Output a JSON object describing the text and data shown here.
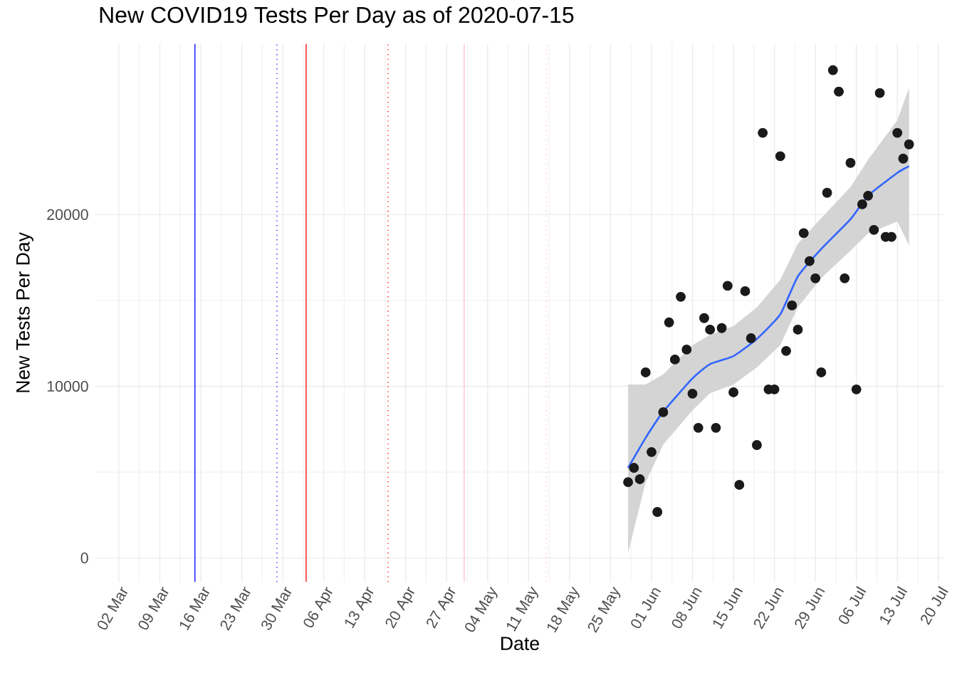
{
  "chart_data": {
    "type": "scatter",
    "title": "New COVID19 Tests Per Day as of 2020-07-15",
    "xlabel": "Date",
    "ylabel": "New Tests Per Day",
    "xlim": [
      "2020-02-27",
      "2020-07-21"
    ],
    "ylim": [
      -1400,
      29950
    ],
    "xticks": [
      {
        "value": "2020-03-02",
        "label": "02 Mar"
      },
      {
        "value": "2020-03-09",
        "label": "09 Mar"
      },
      {
        "value": "2020-03-16",
        "label": "16 Mar"
      },
      {
        "value": "2020-03-23",
        "label": "23 Mar"
      },
      {
        "value": "2020-03-30",
        "label": "30 Mar"
      },
      {
        "value": "2020-04-06",
        "label": "06 Apr"
      },
      {
        "value": "2020-04-13",
        "label": "13 Apr"
      },
      {
        "value": "2020-04-20",
        "label": "20 Apr"
      },
      {
        "value": "2020-04-27",
        "label": "27 Apr"
      },
      {
        "value": "2020-05-04",
        "label": "04 May"
      },
      {
        "value": "2020-05-11",
        "label": "11 May"
      },
      {
        "value": "2020-05-18",
        "label": "18 May"
      },
      {
        "value": "2020-05-25",
        "label": "25 May"
      },
      {
        "value": "2020-06-01",
        "label": "01 Jun"
      },
      {
        "value": "2020-06-08",
        "label": "08 Jun"
      },
      {
        "value": "2020-06-15",
        "label": "15 Jun"
      },
      {
        "value": "2020-06-22",
        "label": "22 Jun"
      },
      {
        "value": "2020-06-29",
        "label": "29 Jun"
      },
      {
        "value": "2020-07-06",
        "label": "06 Jul"
      },
      {
        "value": "2020-07-13",
        "label": "13 Jul"
      },
      {
        "value": "2020-07-20",
        "label": "20 Jul"
      }
    ],
    "yticks": [
      0,
      10000,
      20000
    ],
    "grid": true,
    "ref_lines": [
      {
        "axis": "x",
        "value": "2020-03-15",
        "color": "#0000ff",
        "line_style": "solid"
      },
      {
        "axis": "x",
        "value": "2020-03-29",
        "color": "#0000ff",
        "line_style": "dotted"
      },
      {
        "axis": "x",
        "value": "2020-04-03",
        "color": "#ff0000",
        "line_style": "solid"
      },
      {
        "axis": "x",
        "value": "2020-04-17",
        "color": "#ff0000",
        "line_style": "dotted"
      },
      {
        "axis": "x",
        "value": "2020-04-30",
        "color": "#ffc0cb",
        "line_style": "solid"
      },
      {
        "axis": "x",
        "value": "2020-05-14",
        "color": "#ffc0cb",
        "line_style": "dotted"
      }
    ],
    "series": [
      {
        "color": "#1a1a1a",
        "marker": "circle",
        "x": [
          "2020-05-28",
          "2020-05-29",
          "2020-05-30",
          "2020-05-31",
          "2020-06-01",
          "2020-06-02",
          "2020-06-03",
          "2020-06-04",
          "2020-06-05",
          "2020-06-06",
          "2020-06-07",
          "2020-06-08",
          "2020-06-09",
          "2020-06-10",
          "2020-06-11",
          "2020-06-12",
          "2020-06-13",
          "2020-06-14",
          "2020-06-15",
          "2020-06-16",
          "2020-06-17",
          "2020-06-18",
          "2020-06-19",
          "2020-06-20",
          "2020-06-21",
          "2020-06-22",
          "2020-06-23",
          "2020-06-24",
          "2020-06-25",
          "2020-06-26",
          "2020-06-27",
          "2020-06-28",
          "2020-06-29",
          "2020-06-30",
          "2020-07-01",
          "2020-07-02",
          "2020-07-03",
          "2020-07-04",
          "2020-07-05",
          "2020-07-06",
          "2020-07-07",
          "2020-07-08",
          "2020-07-09",
          "2020-07-10",
          "2020-07-11",
          "2020-07-12",
          "2020-07-13",
          "2020-07-14",
          "2020-07-15"
        ],
        "values": [
          4420,
          5250,
          4590,
          10810,
          6170,
          2680,
          8490,
          13720,
          11560,
          15210,
          12140,
          9570,
          7580,
          13970,
          13300,
          7580,
          13390,
          15850,
          9650,
          4260,
          15540,
          12800,
          6580,
          24760,
          9820,
          9820,
          23400,
          12060,
          14710,
          13300,
          18920,
          17290,
          16290,
          10810,
          21270,
          28410,
          27160,
          16290,
          23010,
          9820,
          20600,
          21100,
          19110,
          27080,
          18700,
          18700,
          24760,
          23260,
          24090
        ]
      },
      {
        "type": "line",
        "color": "#3366ff",
        "marker": "none",
        "x": [
          "2020-05-28",
          "2020-05-31",
          "2020-06-03",
          "2020-06-08",
          "2020-06-11",
          "2020-06-15",
          "2020-06-19",
          "2020-06-23",
          "2020-06-26",
          "2020-06-30",
          "2020-07-05",
          "2020-07-08",
          "2020-07-13",
          "2020-07-15"
        ],
        "values": [
          5250,
          7000,
          8520,
          10460,
          11290,
          11760,
          12760,
          14190,
          16400,
          18000,
          19730,
          21100,
          22430,
          22820
        ],
        "lower": [
          300,
          4400,
          6600,
          8600,
          9600,
          10100,
          11100,
          12400,
          14600,
          16300,
          17900,
          18900,
          19600,
          18200
        ],
        "upper": [
          10100,
          10100,
          10700,
          12400,
          13000,
          13500,
          14600,
          16200,
          18300,
          19800,
          21600,
          23200,
          25500,
          27400
        ]
      }
    ]
  }
}
